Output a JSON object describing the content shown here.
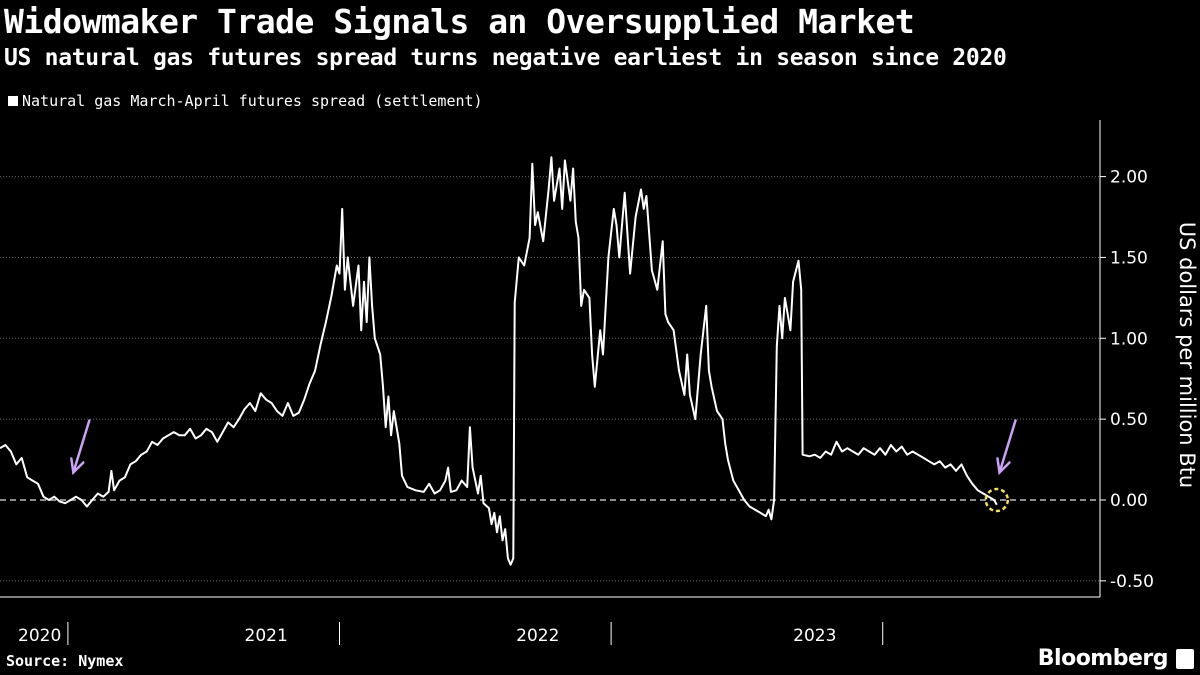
{
  "title": "Widowmaker Trade Signals an Oversupplied Market",
  "subtitle": "US natural gas futures spread turns negative earliest in season since 2020",
  "legend_label": "Natural gas March-April futures spread (settlement)",
  "ylabel": "US dollars per million Btu",
  "source": "Source: Nymex",
  "brand": "Bloomberg",
  "colors": {
    "background": "#000000",
    "line": "#ffffff",
    "zero_line": "#bbbbbb",
    "arrow": "#c9a2f5",
    "highlight_circle": "#f5e15a"
  },
  "chart_data": {
    "type": "line",
    "title": "Widowmaker Trade Signals an Oversupplied Market",
    "subtitle": "US natural gas futures spread turns negative earliest in season since 2020",
    "xlabel": "",
    "ylabel": "US dollars per million Btu",
    "ylim": [
      -0.6,
      2.35
    ],
    "yticks": [
      -0.5,
      0.0,
      0.5,
      1.0,
      1.5,
      2.0
    ],
    "ytick_labels": [
      "-0.50",
      "0.00",
      "0.50",
      "1.00",
      "1.50",
      "2.00"
    ],
    "xlim": [
      2020.0,
      2024.05
    ],
    "xtick_labels": [
      "2020",
      "2021",
      "2022",
      "2023"
    ],
    "x_label_positions": [
      2020.0,
      2020.98,
      2021.98,
      2023.0
    ],
    "x_dividers": [
      2020.25,
      2021.25,
      2022.25,
      2023.25,
      2024.25
    ],
    "zero_line": 0,
    "series": [
      {
        "name": "Natural gas March-April futures spread (settlement)",
        "points": [
          [
            2020.0,
            0.32
          ],
          [
            2020.02,
            0.34
          ],
          [
            2020.04,
            0.3
          ],
          [
            2020.06,
            0.22
          ],
          [
            2020.08,
            0.26
          ],
          [
            2020.1,
            0.14
          ],
          [
            2020.12,
            0.12
          ],
          [
            2020.14,
            0.1
          ],
          [
            2020.16,
            0.02
          ],
          [
            2020.18,
            0.0
          ],
          [
            2020.2,
            0.02
          ],
          [
            2020.22,
            -0.01
          ],
          [
            2020.24,
            -0.02
          ],
          [
            2020.26,
            0.0
          ],
          [
            2020.28,
            0.02
          ],
          [
            2020.3,
            0.0
          ],
          [
            2020.32,
            -0.04
          ],
          [
            2020.34,
            0.0
          ],
          [
            2020.36,
            0.04
          ],
          [
            2020.38,
            0.02
          ],
          [
            2020.4,
            0.05
          ],
          [
            2020.41,
            0.18
          ],
          [
            2020.42,
            0.06
          ],
          [
            2020.44,
            0.12
          ],
          [
            2020.46,
            0.14
          ],
          [
            2020.48,
            0.22
          ],
          [
            2020.5,
            0.24
          ],
          [
            2020.52,
            0.28
          ],
          [
            2020.54,
            0.3
          ],
          [
            2020.56,
            0.36
          ],
          [
            2020.58,
            0.34
          ],
          [
            2020.6,
            0.38
          ],
          [
            2020.62,
            0.4
          ],
          [
            2020.64,
            0.42
          ],
          [
            2020.66,
            0.4
          ],
          [
            2020.68,
            0.4
          ],
          [
            2020.7,
            0.44
          ],
          [
            2020.72,
            0.38
          ],
          [
            2020.74,
            0.4
          ],
          [
            2020.76,
            0.44
          ],
          [
            2020.78,
            0.42
          ],
          [
            2020.8,
            0.36
          ],
          [
            2020.82,
            0.42
          ],
          [
            2020.84,
            0.48
          ],
          [
            2020.86,
            0.45
          ],
          [
            2020.88,
            0.5
          ],
          [
            2020.9,
            0.56
          ],
          [
            2020.92,
            0.6
          ],
          [
            2020.94,
            0.55
          ],
          [
            2020.96,
            0.66
          ],
          [
            2020.98,
            0.62
          ],
          [
            2021.0,
            0.6
          ],
          [
            2021.02,
            0.55
          ],
          [
            2021.04,
            0.52
          ],
          [
            2021.06,
            0.6
          ],
          [
            2021.08,
            0.52
          ],
          [
            2021.1,
            0.54
          ],
          [
            2021.12,
            0.62
          ],
          [
            2021.14,
            0.72
          ],
          [
            2021.16,
            0.8
          ],
          [
            2021.18,
            0.96
          ],
          [
            2021.2,
            1.1
          ],
          [
            2021.22,
            1.26
          ],
          [
            2021.24,
            1.45
          ],
          [
            2021.25,
            1.4
          ],
          [
            2021.26,
            1.8
          ],
          [
            2021.27,
            1.3
          ],
          [
            2021.28,
            1.5
          ],
          [
            2021.3,
            1.2
          ],
          [
            2021.32,
            1.45
          ],
          [
            2021.33,
            1.05
          ],
          [
            2021.34,
            1.35
          ],
          [
            2021.35,
            1.1
          ],
          [
            2021.36,
            1.5
          ],
          [
            2021.37,
            1.2
          ],
          [
            2021.38,
            1.0
          ],
          [
            2021.4,
            0.9
          ],
          [
            2021.41,
            0.7
          ],
          [
            2021.42,
            0.45
          ],
          [
            2021.43,
            0.64
          ],
          [
            2021.44,
            0.4
          ],
          [
            2021.45,
            0.55
          ],
          [
            2021.47,
            0.35
          ],
          [
            2021.48,
            0.15
          ],
          [
            2021.5,
            0.08
          ],
          [
            2021.53,
            0.06
          ],
          [
            2021.56,
            0.05
          ],
          [
            2021.58,
            0.1
          ],
          [
            2021.6,
            0.04
          ],
          [
            2021.62,
            0.06
          ],
          [
            2021.64,
            0.12
          ],
          [
            2021.65,
            0.2
          ],
          [
            2021.66,
            0.05
          ],
          [
            2021.68,
            0.06
          ],
          [
            2021.7,
            0.12
          ],
          [
            2021.72,
            0.08
          ],
          [
            2021.73,
            0.45
          ],
          [
            2021.74,
            0.2
          ],
          [
            2021.76,
            0.04
          ],
          [
            2021.77,
            0.15
          ],
          [
            2021.78,
            -0.02
          ],
          [
            2021.8,
            -0.05
          ],
          [
            2021.81,
            -0.15
          ],
          [
            2021.82,
            -0.08
          ],
          [
            2021.83,
            -0.2
          ],
          [
            2021.84,
            -0.1
          ],
          [
            2021.85,
            -0.25
          ],
          [
            2021.86,
            -0.18
          ],
          [
            2021.87,
            -0.36
          ],
          [
            2021.88,
            -0.4
          ],
          [
            2021.89,
            -0.36
          ],
          [
            2021.895,
            1.22
          ],
          [
            2021.91,
            1.5
          ],
          [
            2021.93,
            1.45
          ],
          [
            2021.95,
            1.62
          ],
          [
            2021.96,
            2.08
          ],
          [
            2021.97,
            1.7
          ],
          [
            2021.98,
            1.78
          ],
          [
            2022.0,
            1.6
          ],
          [
            2022.02,
            1.92
          ],
          [
            2022.03,
            2.12
          ],
          [
            2022.04,
            1.85
          ],
          [
            2022.06,
            2.05
          ],
          [
            2022.07,
            1.8
          ],
          [
            2022.08,
            2.1
          ],
          [
            2022.1,
            1.85
          ],
          [
            2022.11,
            2.05
          ],
          [
            2022.12,
            1.72
          ],
          [
            2022.13,
            1.62
          ],
          [
            2022.14,
            1.2
          ],
          [
            2022.15,
            1.3
          ],
          [
            2022.17,
            1.25
          ],
          [
            2022.18,
            0.9
          ],
          [
            2022.19,
            0.7
          ],
          [
            2022.21,
            1.05
          ],
          [
            2022.22,
            0.9
          ],
          [
            2022.24,
            1.5
          ],
          [
            2022.26,
            1.8
          ],
          [
            2022.27,
            1.7
          ],
          [
            2022.28,
            1.5
          ],
          [
            2022.3,
            1.9
          ],
          [
            2022.32,
            1.4
          ],
          [
            2022.34,
            1.75
          ],
          [
            2022.36,
            1.92
          ],
          [
            2022.37,
            1.8
          ],
          [
            2022.38,
            1.88
          ],
          [
            2022.4,
            1.42
          ],
          [
            2022.42,
            1.3
          ],
          [
            2022.44,
            1.6
          ],
          [
            2022.45,
            1.15
          ],
          [
            2022.46,
            1.1
          ],
          [
            2022.48,
            1.05
          ],
          [
            2022.5,
            0.8
          ],
          [
            2022.52,
            0.65
          ],
          [
            2022.53,
            0.9
          ],
          [
            2022.54,
            0.65
          ],
          [
            2022.56,
            0.5
          ],
          [
            2022.58,
            0.9
          ],
          [
            2022.6,
            1.2
          ],
          [
            2022.61,
            0.8
          ],
          [
            2022.62,
            0.7
          ],
          [
            2022.64,
            0.55
          ],
          [
            2022.66,
            0.5
          ],
          [
            2022.67,
            0.35
          ],
          [
            2022.68,
            0.25
          ],
          [
            2022.7,
            0.12
          ],
          [
            2022.72,
            0.06
          ],
          [
            2022.74,
            0.0
          ],
          [
            2022.76,
            -0.04
          ],
          [
            2022.78,
            -0.06
          ],
          [
            2022.8,
            -0.08
          ],
          [
            2022.82,
            -0.1
          ],
          [
            2022.83,
            -0.06
          ],
          [
            2022.84,
            -0.12
          ],
          [
            2022.85,
            0.0
          ],
          [
            2022.86,
            0.95
          ],
          [
            2022.87,
            1.2
          ],
          [
            2022.88,
            1.0
          ],
          [
            2022.89,
            1.25
          ],
          [
            2022.91,
            1.05
          ],
          [
            2022.92,
            1.35
          ],
          [
            2022.94,
            1.48
          ],
          [
            2022.95,
            1.3
          ],
          [
            2022.955,
            0.28
          ],
          [
            2022.98,
            0.27
          ],
          [
            2023.0,
            0.28
          ],
          [
            2023.02,
            0.26
          ],
          [
            2023.04,
            0.3
          ],
          [
            2023.06,
            0.28
          ],
          [
            2023.08,
            0.36
          ],
          [
            2023.1,
            0.3
          ],
          [
            2023.12,
            0.32
          ],
          [
            2023.14,
            0.3
          ],
          [
            2023.16,
            0.28
          ],
          [
            2023.18,
            0.32
          ],
          [
            2023.2,
            0.3
          ],
          [
            2023.22,
            0.28
          ],
          [
            2023.24,
            0.32
          ],
          [
            2023.26,
            0.28
          ],
          [
            2023.28,
            0.34
          ],
          [
            2023.3,
            0.3
          ],
          [
            2023.32,
            0.33
          ],
          [
            2023.34,
            0.28
          ],
          [
            2023.36,
            0.3
          ],
          [
            2023.38,
            0.28
          ],
          [
            2023.4,
            0.26
          ],
          [
            2023.42,
            0.24
          ],
          [
            2023.44,
            0.22
          ],
          [
            2023.46,
            0.24
          ],
          [
            2023.48,
            0.2
          ],
          [
            2023.5,
            0.22
          ],
          [
            2023.52,
            0.18
          ],
          [
            2023.54,
            0.22
          ],
          [
            2023.56,
            0.15
          ],
          [
            2023.58,
            0.1
          ],
          [
            2023.6,
            0.06
          ],
          [
            2023.62,
            0.04
          ],
          [
            2023.64,
            0.02
          ],
          [
            2023.66,
            0.0
          ],
          [
            2023.67,
            -0.03
          ]
        ]
      }
    ],
    "annotations": [
      {
        "type": "arrow",
        "x": 2020.27,
        "y": 0.17,
        "label": "arrow-2020"
      },
      {
        "type": "arrow",
        "x": 2023.68,
        "y": 0.17,
        "label": "arrow-2023"
      },
      {
        "type": "circle",
        "x": 2023.67,
        "y": 0.0,
        "label": "current-negative"
      }
    ]
  }
}
